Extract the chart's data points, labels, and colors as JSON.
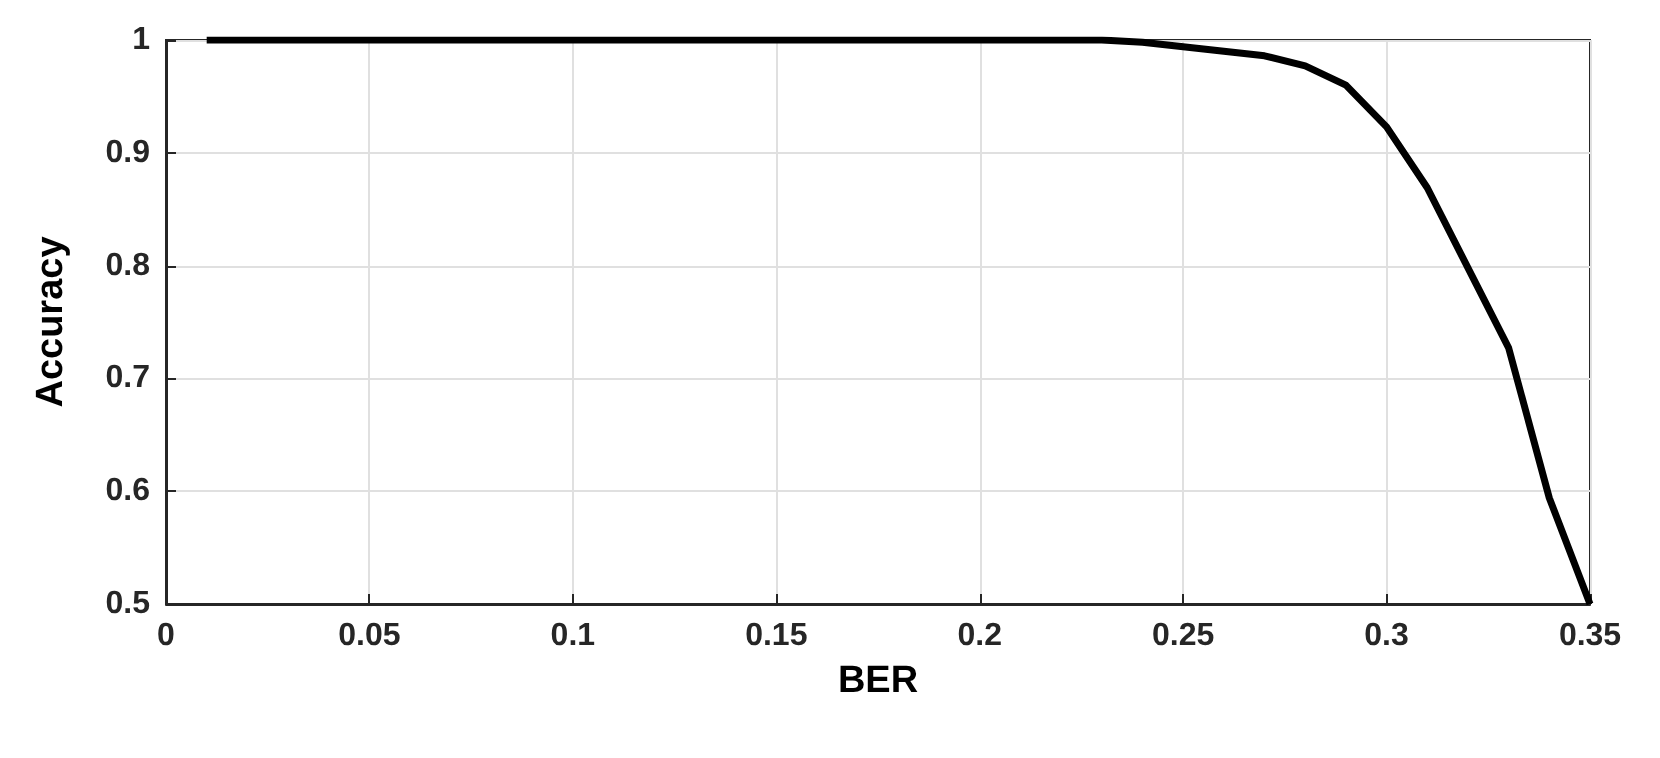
{
  "chart_data": {
    "type": "line",
    "xlabel": "BER",
    "ylabel": "Accuracy",
    "x": [
      0.01,
      0.05,
      0.1,
      0.15,
      0.2,
      0.23,
      0.24,
      0.25,
      0.26,
      0.27,
      0.28,
      0.29,
      0.3,
      0.31,
      0.32,
      0.33,
      0.34,
      0.35
    ],
    "series": [
      {
        "color": "#000000",
        "values": [
          1,
          1,
          1,
          1,
          1,
          1,
          0.998,
          0.994,
          0.99,
          0.986,
          0.977,
          0.96,
          0.923,
          0.869,
          0.798,
          0.727,
          0.594,
          0.5
        ]
      }
    ],
    "xlim": [
      0,
      0.35
    ],
    "xticks": [
      0,
      0.05,
      0.1,
      0.15,
      0.2,
      0.25,
      0.3,
      0.35
    ],
    "ylim": [
      0.5,
      1
    ],
    "yticks": [
      0.5,
      0.6,
      0.7,
      0.8,
      0.9,
      1
    ],
    "grid": true,
    "marker": "none",
    "line_style": "solid"
  }
}
